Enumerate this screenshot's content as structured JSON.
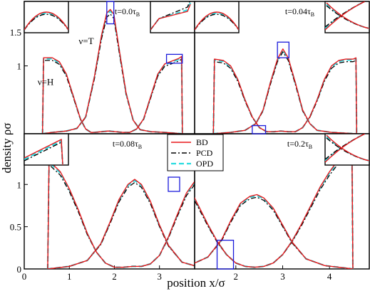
{
  "figure": {
    "ylabel": "density ρσ",
    "xlabel": "position x/σ",
    "legend": {
      "placement": "center",
      "entries": [
        {
          "label": "BD",
          "color": "#e8191c",
          "dash": "solid"
        },
        {
          "label": "PCD",
          "color": "#000000",
          "dash": "dashdot"
        },
        {
          "label": "OPD",
          "color": "#27dbe0",
          "dash": "dashed"
        }
      ]
    },
    "inset_box_color": "#1a1adb"
  },
  "chart_data": [
    {
      "type": "line",
      "panel": "top-left",
      "time_label": "t=0.0τ",
      "time_sub": "B",
      "annotations": [
        "ν=T",
        "ν=H"
      ],
      "xlim": [
        0,
        4.85
      ],
      "ylim": [
        0,
        1.95
      ],
      "yticks": [
        1,
        1.5
      ],
      "yticklabels": [
        "1",
        "1.5"
      ],
      "xticks": [],
      "xticklabels": [],
      "series": [
        {
          "name": "BD",
          "species": "H",
          "x": [
            0.52,
            0.55,
            0.8,
            1.0,
            1.2,
            1.4,
            1.6,
            1.75,
            1.9,
            2.0,
            2.2,
            2.4,
            2.6,
            2.8,
            3.0,
            3.2,
            3.4,
            3.6,
            3.8,
            4.0,
            4.2,
            4.4,
            4.48,
            4.5
          ],
          "y": [
            0,
            1.12,
            1.12,
            1.06,
            0.88,
            0.55,
            0.22,
            0.07,
            0.02,
            0.02,
            0.03,
            0.04,
            0.03,
            0.02,
            0.02,
            0.07,
            0.22,
            0.55,
            0.88,
            1.03,
            1.07,
            1.11,
            1.14,
            0
          ]
        },
        {
          "name": "BD",
          "species": "T",
          "x": [
            0.52,
            0.8,
            1.2,
            1.5,
            1.75,
            2.0,
            2.2,
            2.35,
            2.45,
            2.55,
            2.7,
            2.9,
            3.1,
            3.3,
            3.6,
            4.0,
            4.5
          ],
          "y": [
            0,
            0.02,
            0.04,
            0.08,
            0.25,
            0.85,
            1.45,
            1.78,
            1.83,
            1.76,
            1.25,
            0.6,
            0.2,
            0.06,
            0.03,
            0.02,
            0
          ]
        }
      ],
      "insets": [
        {
          "position": "top-left",
          "zoom_of": "peak",
          "curves": 3
        },
        {
          "position": "top-right",
          "zoom_of": "right edge",
          "curves": 3
        }
      ]
    },
    {
      "type": "line",
      "panel": "top-right",
      "time_label": "t=0.04τ",
      "time_sub": "B",
      "xlim": [
        0,
        4.85
      ],
      "ylim": [
        0,
        1.95
      ],
      "yticks": [],
      "yticklabels": [],
      "xticks": [],
      "xticklabels": [],
      "series": [
        {
          "name": "BD",
          "species": "H",
          "x": [
            0.52,
            0.55,
            0.8,
            1.0,
            1.2,
            1.4,
            1.6,
            1.8,
            2.0,
            2.2,
            2.4,
            2.6,
            2.8,
            3.0,
            3.2,
            3.4,
            3.6,
            3.8,
            4.0,
            4.2,
            4.4,
            4.48,
            4.5
          ],
          "y": [
            0,
            1.1,
            1.08,
            1.0,
            0.8,
            0.5,
            0.25,
            0.09,
            0.03,
            0.03,
            0.04,
            0.03,
            0.03,
            0.09,
            0.25,
            0.5,
            0.8,
            1.0,
            1.08,
            1.1,
            1.1,
            1.12,
            0
          ]
        },
        {
          "name": "BD",
          "species": "T",
          "x": [
            0.52,
            1.0,
            1.4,
            1.7,
            1.9,
            2.1,
            2.3,
            2.45,
            2.6,
            2.8,
            3.0,
            3.2,
            3.4,
            3.8,
            4.5
          ],
          "y": [
            0,
            0.02,
            0.05,
            0.15,
            0.35,
            0.75,
            1.1,
            1.25,
            1.12,
            0.75,
            0.35,
            0.15,
            0.05,
            0.02,
            0
          ]
        }
      ],
      "insets": [
        {
          "position": "top-left",
          "zoom_of": "peak",
          "curves": 3
        },
        {
          "position": "top-right",
          "zoom_of": "crossing",
          "curves": 3
        }
      ]
    },
    {
      "type": "line",
      "panel": "bottom-left",
      "time_label": "t=0.08τ",
      "time_sub": "B",
      "xlim": [
        0,
        4.85
      ],
      "ylim": [
        0,
        1.6
      ],
      "yticks": [
        0,
        0.5,
        1
      ],
      "yticklabels": [
        "0",
        "0.5",
        "1"
      ],
      "xticks": [
        0,
        1,
        2,
        3
      ],
      "xticklabels": [
        "0",
        "1",
        "2",
        "3"
      ],
      "series": [
        {
          "name": "BD",
          "species": "H",
          "x": [
            0.52,
            0.55,
            0.8,
            1.0,
            1.2,
            1.4,
            1.6,
            1.8,
            2.0,
            2.2,
            2.4,
            2.6,
            2.8,
            3.0,
            3.2,
            3.4,
            3.6,
            3.8,
            4.0,
            4.2,
            4.4,
            4.48,
            4.5
          ],
          "y": [
            0,
            1.28,
            1.15,
            0.95,
            0.7,
            0.42,
            0.2,
            0.07,
            0.02,
            0.02,
            0.03,
            0.03,
            0.06,
            0.16,
            0.38,
            0.65,
            0.9,
            1.05,
            1.12,
            1.17,
            1.22,
            1.28,
            0
          ]
        },
        {
          "name": "BD",
          "species": "T",
          "x": [
            0.52,
            1.0,
            1.4,
            1.7,
            1.9,
            2.1,
            2.3,
            2.45,
            2.6,
            2.8,
            3.0,
            3.2,
            3.5,
            3.9,
            4.5
          ],
          "y": [
            0,
            0.03,
            0.1,
            0.3,
            0.55,
            0.82,
            1.0,
            1.06,
            1.0,
            0.8,
            0.52,
            0.28,
            0.08,
            0.02,
            0
          ]
        }
      ],
      "insets": [
        {
          "position": "top-left",
          "zoom_of": "left edge",
          "curves": 3
        }
      ]
    },
    {
      "type": "line",
      "panel": "bottom-right",
      "time_label": "t=0.2τ",
      "time_sub": "B",
      "xlim": [
        0,
        4.85
      ],
      "ylim": [
        0,
        1.6
      ],
      "yticks": [],
      "yticklabels": [],
      "xticks": [
        2,
        3,
        4
      ],
      "xticklabels": [
        "2",
        "3",
        "4"
      ],
      "series": [
        {
          "name": "BD",
          "species": "H",
          "x": [
            0.52,
            0.55,
            0.8,
            1.0,
            1.2,
            1.4,
            1.6,
            1.8,
            2.0,
            2.2,
            2.4,
            2.6,
            2.8,
            3.0,
            3.2,
            3.4,
            3.6,
            3.8,
            4.0,
            4.2,
            4.4,
            4.48,
            4.5
          ],
          "y": [
            0,
            1.42,
            1.2,
            0.97,
            0.75,
            0.53,
            0.33,
            0.17,
            0.07,
            0.03,
            0.02,
            0.03,
            0.07,
            0.17,
            0.33,
            0.53,
            0.75,
            0.97,
            1.15,
            1.3,
            1.4,
            1.44,
            0
          ]
        },
        {
          "name": "BD",
          "species": "T",
          "x": [
            0.52,
            1.0,
            1.4,
            1.7,
            1.9,
            2.1,
            2.3,
            2.45,
            2.6,
            2.8,
            3.0,
            3.2,
            3.5,
            3.9,
            4.5
          ],
          "y": [
            0,
            0.04,
            0.14,
            0.35,
            0.58,
            0.78,
            0.86,
            0.88,
            0.84,
            0.72,
            0.52,
            0.32,
            0.12,
            0.04,
            0
          ]
        }
      ],
      "insets": [
        {
          "position": "top-right",
          "zoom_of": "crossing",
          "curves": 3
        }
      ]
    }
  ]
}
